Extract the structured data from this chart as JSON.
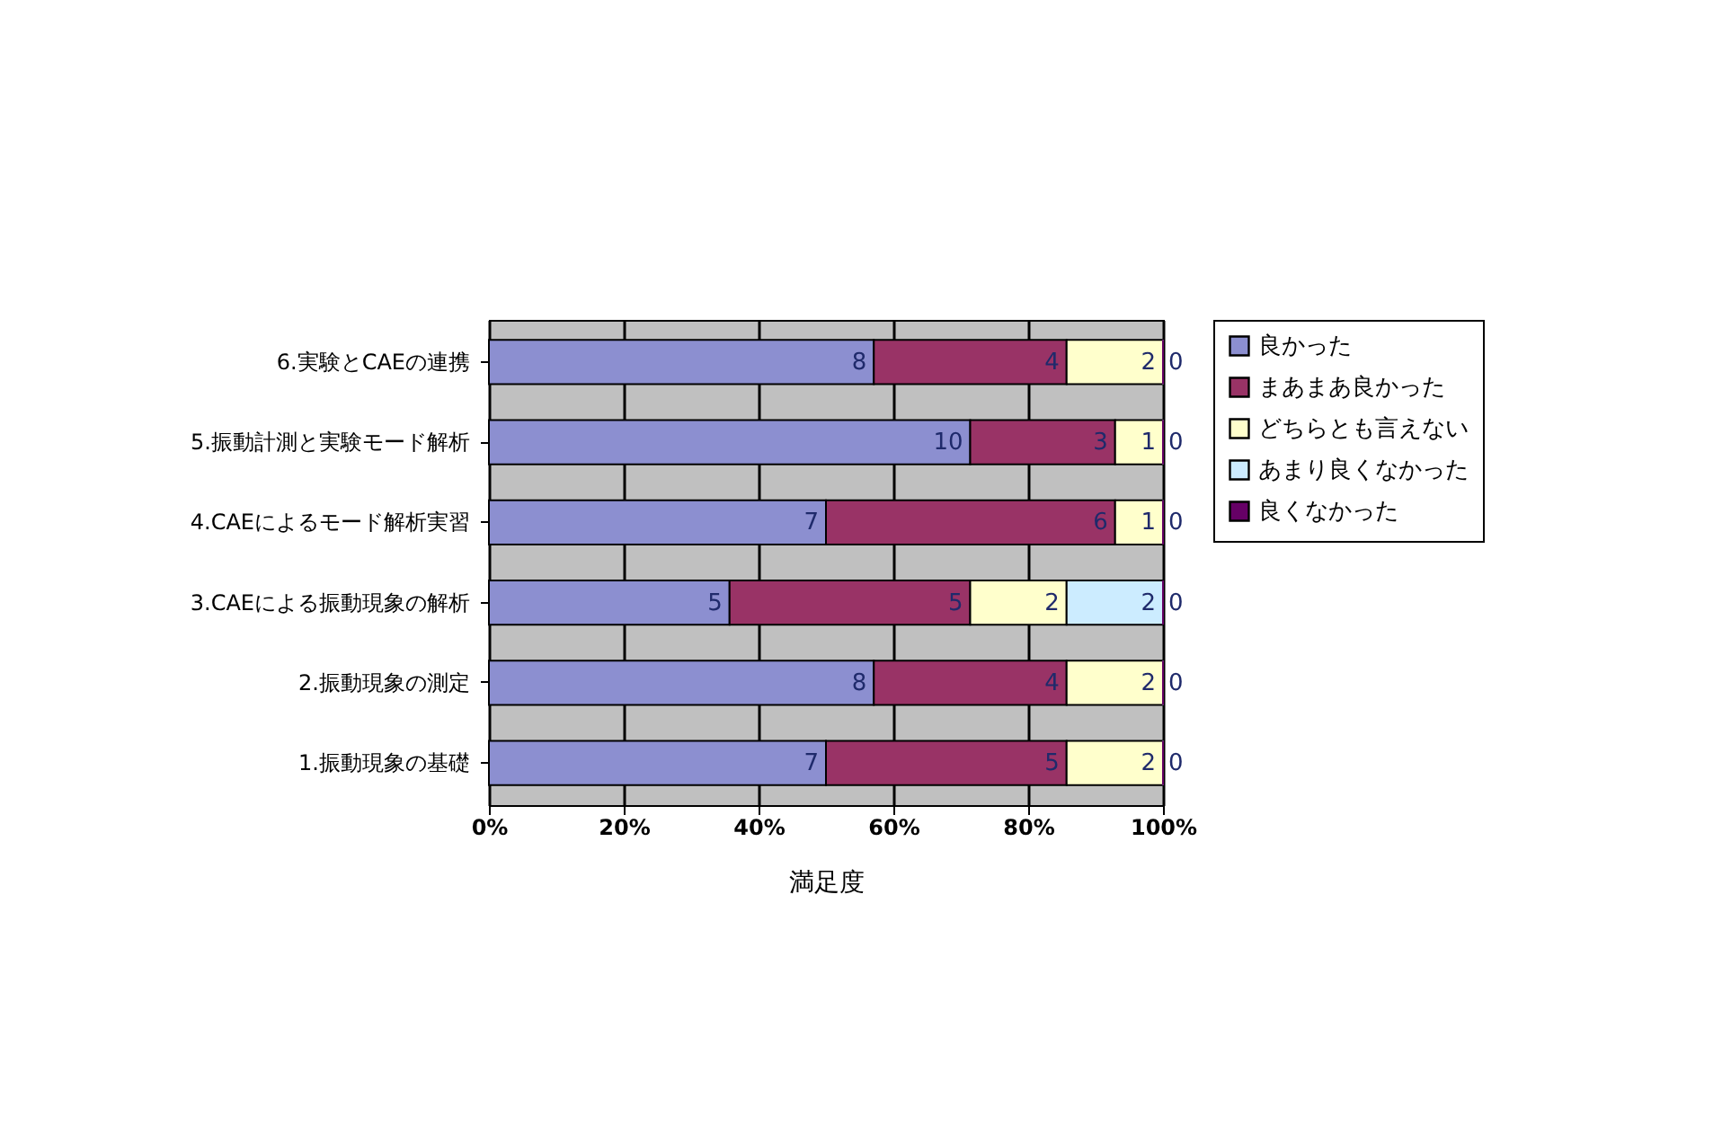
{
  "chart_data": {
    "type": "bar",
    "orientation": "horizontal",
    "stacked": true,
    "xlabel": "満足度",
    "categories": [
      "6.実験とCAEの連携",
      "5.振動計測と実験モード解析",
      "4.CAEによるモード解析実習",
      "3.CAEによる振動現象の解析",
      "2.振動現象の測定",
      "1.振動現象の基礎"
    ],
    "series": [
      {
        "name": "良かった",
        "color": "#8c8fd0",
        "values": [
          57.1,
          71.4,
          50,
          35.7,
          57.1,
          50
        ]
      },
      {
        "name": "まあまあ良かった",
        "color": "#993366",
        "values": [
          28.6,
          21.5,
          42.9,
          35.7,
          28.6,
          35.7
        ]
      },
      {
        "name": "どちらとも言えない",
        "color": "#ffffcc",
        "values": [
          14.3,
          7.1,
          7.1,
          14.3,
          14.3,
          14.3
        ]
      },
      {
        "name": "あまり良くなかった",
        "color": "#ccecff",
        "values": [
          0,
          0,
          0,
          14.3,
          0,
          0
        ]
      },
      {
        "name": "良くなかった",
        "color": "#660066",
        "values": [
          0,
          0,
          0,
          0,
          0,
          0
        ]
      }
    ],
    "annotations": [
      {
        "text": "8",
        "x": 57.1,
        "y": "6.実験とCAEの連携"
      },
      {
        "text": "4",
        "x": 85.7,
        "y": "6.実験とCAEの連携"
      },
      {
        "text": "2",
        "x": 100,
        "y": "6.実験とCAEの連携"
      },
      {
        "text": "0",
        "x": 100,
        "y": "6.実験とCAEの連携"
      },
      {
        "text": "10",
        "x": 71.4,
        "y": "5.振動計測と実験モード解析"
      },
      {
        "text": "3",
        "x": 92.9,
        "y": "5.振動計測と実験モード解析"
      },
      {
        "text": "1",
        "x": 100,
        "y": "5.振動計測と実験モード解析"
      },
      {
        "text": "0",
        "x": 100,
        "y": "5.振動計測と実験モード解析"
      },
      {
        "text": "7",
        "x": 50,
        "y": "4.CAEによるモード解析実習"
      },
      {
        "text": "6",
        "x": 92.9,
        "y": "4.CAEによるモード解析実習"
      },
      {
        "text": "1",
        "x": 100,
        "y": "4.CAEによるモード解析実習"
      },
      {
        "text": "0",
        "x": 100,
        "y": "4.CAEによるモード解析実習"
      },
      {
        "text": "5",
        "x": 35.7,
        "y": "3.CAEによる振動現象の解析"
      },
      {
        "text": "5",
        "x": 71.4,
        "y": "3.CAEによる振動現象の解析"
      },
      {
        "text": "2",
        "x": 85.7,
        "y": "3.CAEによる振動現象の解析"
      },
      {
        "text": "2",
        "x": 100,
        "y": "3.CAEによる振動現象の解析"
      },
      {
        "text": "0",
        "x": 100,
        "y": "3.CAEによる振動現象の解析"
      },
      {
        "text": "8",
        "x": 57.1,
        "y": "2.振動現象の測定"
      },
      {
        "text": "4",
        "x": 85.7,
        "y": "2.振動現象の測定"
      },
      {
        "text": "2",
        "x": 100,
        "y": "2.振動現象の測定"
      },
      {
        "text": "0",
        "x": 100,
        "y": "2.振動現象の測定"
      },
      {
        "text": "7",
        "x": 50,
        "y": "1.振動現象の基礎"
      },
      {
        "text": "5",
        "x": 85.7,
        "y": "1.振動現象の基礎"
      },
      {
        "text": "2",
        "x": 100,
        "y": "1.振動現象の基礎"
      },
      {
        "text": "0",
        "x": 100,
        "y": "1.振動現象の基礎"
      }
    ],
    "xlim": [
      0,
      100
    ],
    "xticks": [
      {
        "value": 0,
        "label": "0%"
      },
      {
        "value": 20,
        "label": "20%"
      },
      {
        "value": 40,
        "label": "40%"
      },
      {
        "value": 60,
        "label": "60%"
      },
      {
        "value": 80,
        "label": "80%"
      },
      {
        "value": 100,
        "label": "100%"
      }
    ],
    "grid": "x",
    "legend": "right"
  }
}
